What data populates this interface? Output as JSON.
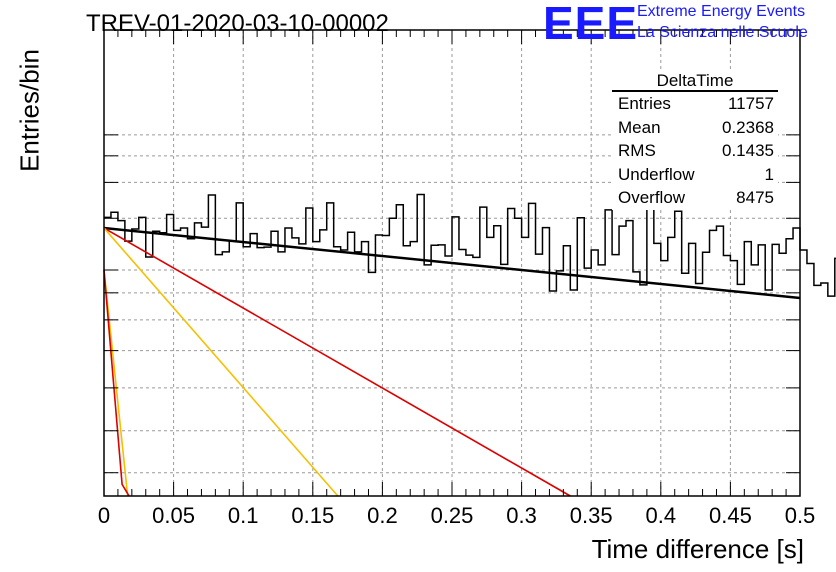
{
  "title": "TREV-01-2020-03-10-00002",
  "logo": {
    "mark": "EEE",
    "line1": "Extreme Energy Events",
    "line2": "La Scienza nelle Scuole",
    "color": "#1a1aff"
  },
  "stats": {
    "name": "DeltaTime",
    "rows": [
      {
        "label": "Entries",
        "value": "11757"
      },
      {
        "label": "Mean",
        "value": "0.2368"
      },
      {
        "label": "RMS",
        "value": "0.1435"
      },
      {
        "label": "Underflow",
        "value": "1"
      },
      {
        "label": "Overflow",
        "value": "8475"
      }
    ]
  },
  "chart_data": {
    "type": "line",
    "title": "TREV-01-2020-03-10-00002",
    "xlabel": "Time difference [s]",
    "ylabel": "Entries/bin",
    "xlim": [
      0,
      0.5
    ],
    "ylim": [
      0,
      1
    ],
    "log_y": true,
    "grid": true,
    "xticks": [
      "0",
      "0.05",
      "0.1",
      "0.15",
      "0.2",
      "0.25",
      "0.3",
      "0.35",
      "0.4",
      "0.45",
      "0.5"
    ],
    "histogram": {
      "bin_width": 0.005,
      "color": "#000000",
      "values": [
        0.598,
        0.609,
        0.591,
        0.547,
        0.573,
        0.598,
        0.513,
        0.568,
        0.565,
        0.604,
        0.57,
        0.575,
        0.552,
        0.586,
        0.577,
        0.646,
        0.518,
        0.524,
        0.547,
        0.629,
        0.535,
        0.563,
        0.533,
        0.534,
        0.568,
        0.524,
        0.575,
        0.554,
        0.541,
        0.618,
        0.546,
        0.571,
        0.629,
        0.535,
        0.528,
        0.566,
        0.524,
        0.546,
        0.48,
        0.56,
        0.559,
        0.596,
        0.625,
        0.537,
        0.546,
        0.647,
        0.496,
        0.538,
        0.539,
        0.515,
        0.599,
        0.529,
        0.517,
        0.512,
        0.62,
        0.555,
        0.58,
        0.497,
        0.617,
        0.596,
        0.555,
        0.628,
        0.519,
        0.576,
        0.44,
        0.483,
        0.537,
        0.442,
        0.597,
        0.489,
        0.528,
        0.496,
        0.614,
        0.518,
        0.579,
        0.591,
        0.481,
        0.453,
        0.619,
        0.542,
        0.505,
        0.555,
        0.611,
        0.478,
        0.542,
        0.456,
        0.523,
        0.57,
        0.579,
        0.516,
        0.505,
        0.454,
        0.546,
        0.496,
        0.539,
        0.442,
        0.54,
        0.521,
        0.552,
        0.575,
        0.528,
        0.499,
        0.452,
        0.457,
        0.429,
        0.51,
        0.566,
        0.564,
        0.454,
        0.518,
        0.42,
        0.463,
        0.538,
        0.511,
        0.505,
        0.466,
        0.521,
        0.543,
        0.534,
        0.451,
        0.474,
        0.501,
        0.516,
        0.41,
        0.496,
        0.591,
        0.497,
        0.527,
        0.404,
        0.476,
        0.459,
        0.444,
        0.503,
        0.54,
        0.419,
        0.473,
        0.516,
        0.398,
        0.488,
        0.57,
        0.444,
        0.481,
        0.556,
        0.508,
        0.44,
        0.508,
        0.495,
        0.473,
        0.495,
        0.406,
        0.489,
        0.453,
        0.484,
        0.561,
        0.512,
        0.467,
        0.504,
        0.433,
        0.564,
        0.51,
        0.553,
        0.588,
        0.512,
        0.505,
        0.498,
        0.474,
        0.498,
        0.482,
        0.47,
        0.409,
        0.512,
        0.472,
        0.499,
        0.552,
        0.545,
        0.517,
        0.502,
        0.467,
        0.411,
        0.519,
        0.407,
        0.461,
        0.455,
        0.481,
        0.394,
        0.425,
        0.462,
        0.523,
        0.426,
        0.425,
        0.521,
        0.473,
        0.464,
        0.442,
        0.408,
        0.444,
        0.446,
        0.466,
        0.42,
        0.442,
        0.383,
        0.543,
        0.425,
        0.377,
        0.397,
        0.472,
        0.495,
        0.465,
        0.52,
        0.465,
        0.443,
        0.475,
        0.399,
        0.477,
        0.443,
        0.493,
        0.384,
        0.445,
        0.462,
        0.458,
        0.407,
        0.423,
        0.436,
        0.461,
        0.481,
        0.469,
        0.484,
        0.454,
        0.431,
        0.546,
        0.441,
        0.546,
        0.411,
        0.421,
        0.446,
        0.443,
        0.547,
        0.473,
        0.415,
        0.466,
        0.451,
        0.459,
        0.485,
        0.484,
        0.502,
        0.406,
        0.448,
        0.404,
        0.425,
        0.459,
        0.512,
        0.484,
        0.46,
        0.492,
        0.452,
        0.475,
        0.52,
        0.401,
        0.497,
        0.479,
        0.473,
        0.473,
        0.452,
        0.441,
        0.423,
        0.44,
        0.527,
        0.52,
        0.518,
        0.506,
        0.451,
        0.46,
        0.409,
        0.423,
        0.474,
        0.464,
        0.415,
        0.482,
        0.442,
        0.451,
        0.432,
        0.471,
        0.479,
        0.493,
        0.467,
        0.446,
        0.496,
        0.454,
        0.478,
        0.377,
        0.512,
        0.375,
        0.424,
        0.444,
        0.523,
        0.511,
        0.536,
        0.376,
        0.502,
        0.493,
        0.501,
        0.488,
        0.523,
        0.456,
        0.448,
        0.495,
        0.44,
        0.477,
        0.461,
        0.364,
        0.464,
        0.461,
        0.421,
        0.533,
        0.432,
        0.393,
        0.536,
        0.474,
        0.46,
        0.44,
        0.422,
        0.489,
        0.434,
        0.469,
        0.393,
        0.444,
        0.509,
        0.468,
        0.458,
        0.489,
        0.4,
        0.414,
        0.499,
        0.498,
        0.429,
        0.472,
        0.513,
        0.44,
        0.462,
        0.415,
        0.394,
        0.358,
        0.479,
        0.54,
        0.42,
        0.411,
        0.489,
        0.355,
        0.464,
        0.404,
        0.475,
        0.502,
        0.439,
        0.397,
        0.518,
        0.372,
        0.483,
        0.427,
        0.53,
        0.49,
        0.442,
        0.407,
        0.367,
        0.494,
        0.463,
        0.404,
        0.518,
        0.524,
        0.484,
        0.447,
        0.436,
        0.423,
        0.464,
        0.478,
        0.441,
        0.454,
        0.412,
        0.456,
        0.436,
        0.348,
        0.456,
        0.475,
        0.475,
        0.435,
        0.379,
        0.455,
        0.387,
        0.412,
        0.376,
        0.412,
        0.442,
        0.447,
        0.44,
        0.423,
        0.434,
        0.424,
        0.508,
        0.402,
        0.419,
        0.454,
        0.484,
        0.378,
        0.419,
        0.436,
        0.382,
        0.423,
        0.45,
        0.432,
        0.456,
        0.502,
        0.457,
        0.383,
        0.377,
        0.362,
        0.439,
        0.509,
        0.489,
        0.423,
        0.379,
        0.432,
        0.398,
        0.438,
        0.408,
        0.468,
        0.431,
        0.353,
        0.343,
        0.342,
        0.476,
        0.516,
        0.424,
        0.405,
        0.415,
        0.478,
        0.456,
        0.41,
        0.501,
        0.419,
        0.414,
        0.396,
        0.432,
        0.413,
        0.402,
        0.441,
        0.372,
        0.42,
        0.476,
        0.375,
        0.408,
        0.368,
        0.373,
        0.429,
        0.507,
        0.406,
        0.349,
        0.423,
        0.427,
        0.48,
        0.44,
        0.428,
        0.378,
        0.405,
        0.398,
        0.436,
        0.403,
        0.361,
        0.31,
        0.487,
        0.418,
        0.498,
        0.326,
        0.392,
        0.409,
        0.364,
        0.358,
        0.481,
        0.395,
        0.46,
        0.404,
        0.363,
        0.417,
        0.401,
        0.46,
        0.356,
        0.387,
        0.418,
        0.392,
        0.44,
        0.409,
        0.412,
        0.408,
        0.421,
        0.478,
        0.389,
        0.409,
        0.39,
        0.35,
        0.399,
        0.452,
        0.326,
        0.459,
        0.383,
        0.356,
        0.398,
        0.339,
        0.356,
        0.399,
        0.439,
        0.401,
        0.409,
        0.431,
        0.328,
        0.431,
        0.415,
        0.426,
        0.327,
        0.489,
        0.317,
        0.47,
        0.396,
        0.348,
        0.412,
        0.364,
        0.374,
        0.369
      ]
    },
    "series": [
      {
        "color": "#000000",
        "x": [
          0,
          0.5
        ],
        "y": [
          0.575,
          0.425
        ]
      },
      {
        "color": "#dd0000",
        "x": [
          0,
          0.335
        ],
        "y": [
          0.575,
          0.0
        ]
      },
      {
        "color": "#f5c000",
        "x": [
          0,
          0.168
        ],
        "y": [
          0.575,
          0.0
        ]
      },
      {
        "color": "#f5c000",
        "x": [
          0,
          0.017
        ],
        "y": [
          0.485,
          0.0
        ]
      },
      {
        "color": "#dd0000",
        "x": [
          0,
          0.013,
          0.018
        ],
        "y": [
          0.485,
          0.025,
          0.0
        ]
      }
    ]
  }
}
